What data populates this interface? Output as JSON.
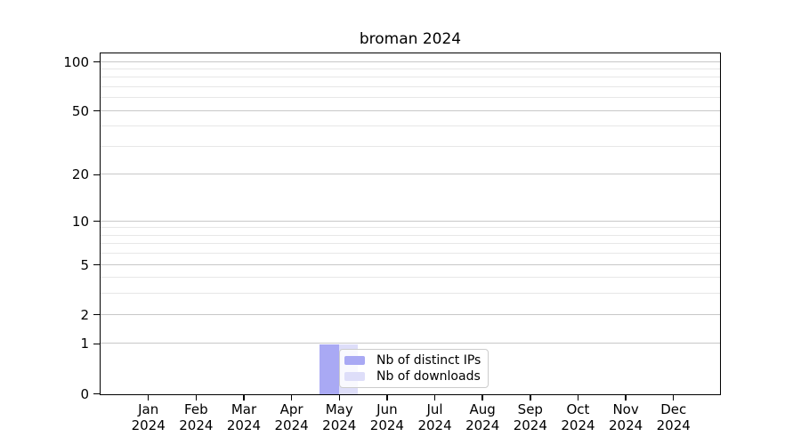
{
  "figure": {
    "background": "#ffffff",
    "axis_color": "#000000",
    "major_grid_color": "#c8c8c8",
    "minor_grid_color": "#e7e7e7"
  },
  "chart_data": {
    "type": "bar",
    "title": "broman 2024",
    "xlabel": "",
    "ylabel": "",
    "x_year_label": "2024",
    "categories": [
      "Jan",
      "Feb",
      "Mar",
      "Apr",
      "May",
      "Jun",
      "Jul",
      "Aug",
      "Sep",
      "Oct",
      "Nov",
      "Dec"
    ],
    "series": [
      {
        "name": "Nb of distinct IPs",
        "color": "#a9a9f4",
        "values": [
          0,
          0,
          0,
          0,
          1,
          0,
          0,
          0,
          0,
          0,
          0,
          0
        ]
      },
      {
        "name": "Nb of downloads",
        "color": "#dedef9",
        "values": [
          0,
          0,
          0,
          0,
          1,
          0,
          0,
          0,
          0,
          0,
          0,
          0
        ]
      }
    ],
    "y_axis": {
      "scale": "log1p",
      "ylim": [
        0,
        100
      ],
      "ticks": [
        0,
        1,
        2,
        5,
        10,
        20,
        50,
        100
      ],
      "minor_gridlines": [
        3,
        4,
        6,
        7,
        8,
        9,
        30,
        40,
        60,
        70,
        80,
        90
      ]
    },
    "grid": "horizontal",
    "legend": {
      "position": "inside-bottom-center",
      "entries": [
        "Nb of distinct IPs",
        "Nb of downloads"
      ]
    }
  }
}
